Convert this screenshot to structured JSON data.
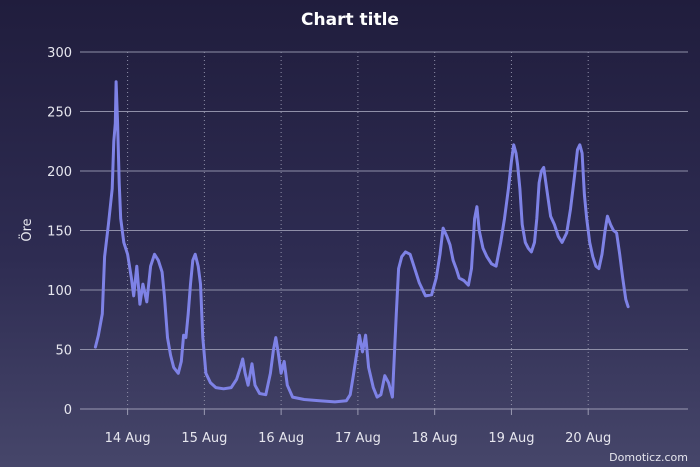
{
  "chart_data": {
    "type": "line",
    "title": "Chart title",
    "xlabel": "",
    "ylabel": "Öre",
    "ylim": [
      0,
      300
    ],
    "yticks": [
      0,
      50,
      100,
      150,
      200,
      250,
      300
    ],
    "xlim": [
      -0.62,
      7.3
    ],
    "xticks": [
      {
        "value": 0,
        "label": "14 Aug"
      },
      {
        "value": 1,
        "label": "15 Aug"
      },
      {
        "value": 2,
        "label": "16 Aug"
      },
      {
        "value": 3,
        "label": "17 Aug"
      },
      {
        "value": 4,
        "label": "18 Aug"
      },
      {
        "value": 5,
        "label": "19 Aug"
      },
      {
        "value": 6,
        "label": "20 Aug"
      }
    ],
    "grid": {
      "horizontal": true,
      "vertical": true
    },
    "credit": "Domoticz.com",
    "series": [
      {
        "color": "#7e82e6",
        "points": [
          [
            -0.42,
            52
          ],
          [
            -0.38,
            62
          ],
          [
            -0.33,
            80
          ],
          [
            -0.3,
            128
          ],
          [
            -0.25,
            155
          ],
          [
            -0.2,
            185
          ],
          [
            -0.18,
            225
          ],
          [
            -0.16,
            240
          ],
          [
            -0.15,
            275
          ],
          [
            -0.13,
            240
          ],
          [
            -0.11,
            190
          ],
          [
            -0.09,
            160
          ],
          [
            -0.05,
            140
          ],
          [
            0.0,
            130
          ],
          [
            0.05,
            110
          ],
          [
            0.08,
            95
          ],
          [
            0.12,
            120
          ],
          [
            0.16,
            88
          ],
          [
            0.2,
            105
          ],
          [
            0.25,
            90
          ],
          [
            0.3,
            120
          ],
          [
            0.35,
            130
          ],
          [
            0.4,
            125
          ],
          [
            0.45,
            115
          ],
          [
            0.48,
            95
          ],
          [
            0.52,
            60
          ],
          [
            0.56,
            45
          ],
          [
            0.6,
            35
          ],
          [
            0.66,
            30
          ],
          [
            0.7,
            40
          ],
          [
            0.73,
            62
          ],
          [
            0.76,
            60
          ],
          [
            0.79,
            80
          ],
          [
            0.82,
            105
          ],
          [
            0.85,
            125
          ],
          [
            0.88,
            130
          ],
          [
            0.92,
            120
          ],
          [
            0.95,
            105
          ],
          [
            0.98,
            60
          ],
          [
            1.02,
            30
          ],
          [
            1.08,
            22
          ],
          [
            1.15,
            18
          ],
          [
            1.25,
            17
          ],
          [
            1.35,
            18
          ],
          [
            1.42,
            25
          ],
          [
            1.47,
            35
          ],
          [
            1.5,
            42
          ],
          [
            1.53,
            30
          ],
          [
            1.57,
            20
          ],
          [
            1.62,
            38
          ],
          [
            1.66,
            20
          ],
          [
            1.72,
            13
          ],
          [
            1.8,
            12
          ],
          [
            1.86,
            30
          ],
          [
            1.9,
            50
          ],
          [
            1.93,
            60
          ],
          [
            1.96,
            48
          ],
          [
            2.0,
            30
          ],
          [
            2.04,
            40
          ],
          [
            2.08,
            20
          ],
          [
            2.15,
            10
          ],
          [
            2.3,
            8
          ],
          [
            2.5,
            7
          ],
          [
            2.7,
            6
          ],
          [
            2.85,
            7
          ],
          [
            2.9,
            12
          ],
          [
            2.94,
            28
          ],
          [
            2.98,
            45
          ],
          [
            3.02,
            62
          ],
          [
            3.06,
            48
          ],
          [
            3.1,
            62
          ],
          [
            3.14,
            35
          ],
          [
            3.2,
            18
          ],
          [
            3.25,
            10
          ],
          [
            3.3,
            12
          ],
          [
            3.35,
            28
          ],
          [
            3.4,
            22
          ],
          [
            3.45,
            10
          ],
          [
            3.5,
            80
          ],
          [
            3.53,
            118
          ],
          [
            3.57,
            128
          ],
          [
            3.62,
            132
          ],
          [
            3.68,
            130
          ],
          [
            3.74,
            118
          ],
          [
            3.8,
            106
          ],
          [
            3.88,
            95
          ],
          [
            3.96,
            96
          ],
          [
            4.02,
            110
          ],
          [
            4.07,
            130
          ],
          [
            4.11,
            152
          ],
          [
            4.16,
            145
          ],
          [
            4.2,
            138
          ],
          [
            4.24,
            125
          ],
          [
            4.28,
            118
          ],
          [
            4.32,
            110
          ],
          [
            4.38,
            108
          ],
          [
            4.44,
            104
          ],
          [
            4.48,
            118
          ],
          [
            4.52,
            160
          ],
          [
            4.55,
            170
          ],
          [
            4.58,
            150
          ],
          [
            4.63,
            135
          ],
          [
            4.68,
            128
          ],
          [
            4.74,
            122
          ],
          [
            4.8,
            120
          ],
          [
            4.86,
            140
          ],
          [
            4.91,
            160
          ],
          [
            4.96,
            185
          ],
          [
            5.0,
            208
          ],
          [
            5.03,
            222
          ],
          [
            5.06,
            215
          ],
          [
            5.08,
            205
          ],
          [
            5.11,
            185
          ],
          [
            5.14,
            155
          ],
          [
            5.18,
            140
          ],
          [
            5.22,
            135
          ],
          [
            5.26,
            132
          ],
          [
            5.3,
            140
          ],
          [
            5.33,
            160
          ],
          [
            5.36,
            190
          ],
          [
            5.39,
            200
          ],
          [
            5.42,
            203
          ],
          [
            5.46,
            185
          ],
          [
            5.51,
            162
          ],
          [
            5.56,
            155
          ],
          [
            5.61,
            145
          ],
          [
            5.66,
            140
          ],
          [
            5.72,
            148
          ],
          [
            5.77,
            168
          ],
          [
            5.82,
            195
          ],
          [
            5.86,
            218
          ],
          [
            5.89,
            222
          ],
          [
            5.92,
            215
          ],
          [
            5.95,
            180
          ],
          [
            5.98,
            160
          ],
          [
            6.02,
            140
          ],
          [
            6.06,
            128
          ],
          [
            6.1,
            120
          ],
          [
            6.14,
            118
          ],
          [
            6.18,
            130
          ],
          [
            6.22,
            150
          ],
          [
            6.25,
            162
          ],
          [
            6.29,
            155
          ],
          [
            6.33,
            150
          ],
          [
            6.37,
            148
          ],
          [
            6.41,
            130
          ],
          [
            6.45,
            110
          ],
          [
            6.49,
            92
          ],
          [
            6.52,
            86
          ]
        ]
      }
    ]
  }
}
